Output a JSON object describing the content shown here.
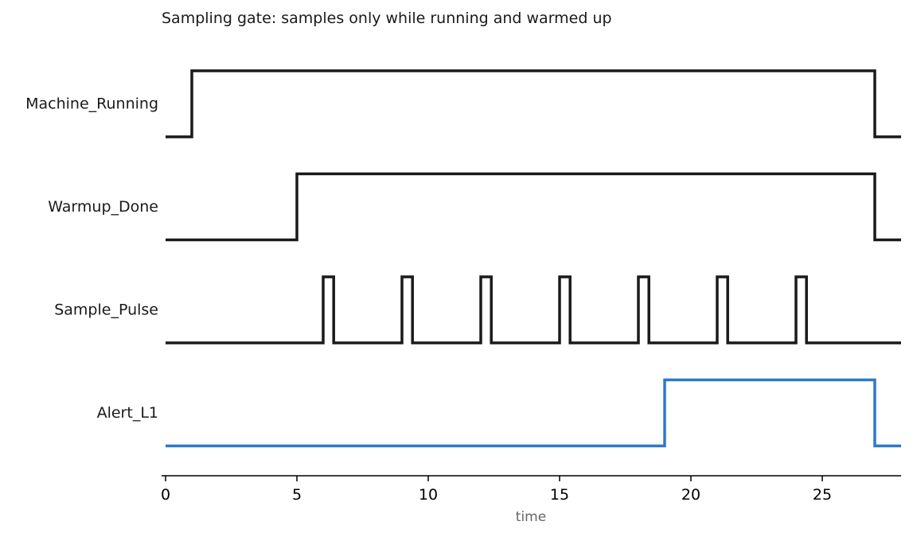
{
  "chart_data": {
    "type": "line",
    "subtype": "digital-timing-diagram",
    "title": "Sampling gate: samples only while running and warmed up",
    "xlabel": "time",
    "ylabel": "",
    "xlim": [
      0,
      28
    ],
    "xticks": [
      0,
      5,
      10,
      15,
      20,
      25
    ],
    "grid": false,
    "legend": "none",
    "series": [
      {
        "name": "Machine_Running",
        "color": "#1a1a1a",
        "steps": [
          [
            0,
            0
          ],
          [
            1,
            1
          ],
          [
            27,
            0
          ],
          [
            28,
            0
          ]
        ]
      },
      {
        "name": "Warmup_Done",
        "color": "#1a1a1a",
        "steps": [
          [
            0,
            0
          ],
          [
            5,
            1
          ],
          [
            27,
            0
          ],
          [
            28,
            0
          ]
        ]
      },
      {
        "name": "Sample_Pulse",
        "color": "#1a1a1a",
        "steps": [
          [
            0,
            0
          ],
          [
            6,
            1
          ],
          [
            6.4,
            0
          ],
          [
            9,
            1
          ],
          [
            9.4,
            0
          ],
          [
            12,
            1
          ],
          [
            12.4,
            0
          ],
          [
            15,
            1
          ],
          [
            15.4,
            0
          ],
          [
            18,
            1
          ],
          [
            18.4,
            0
          ],
          [
            21,
            1
          ],
          [
            21.4,
            0
          ],
          [
            24,
            1
          ],
          [
            24.4,
            0
          ],
          [
            28,
            0
          ]
        ]
      },
      {
        "name": "Alert_L1",
        "color": "#2f78c8",
        "steps": [
          [
            0,
            0
          ],
          [
            19,
            1
          ],
          [
            27,
            0
          ],
          [
            28,
            0
          ]
        ]
      }
    ]
  }
}
